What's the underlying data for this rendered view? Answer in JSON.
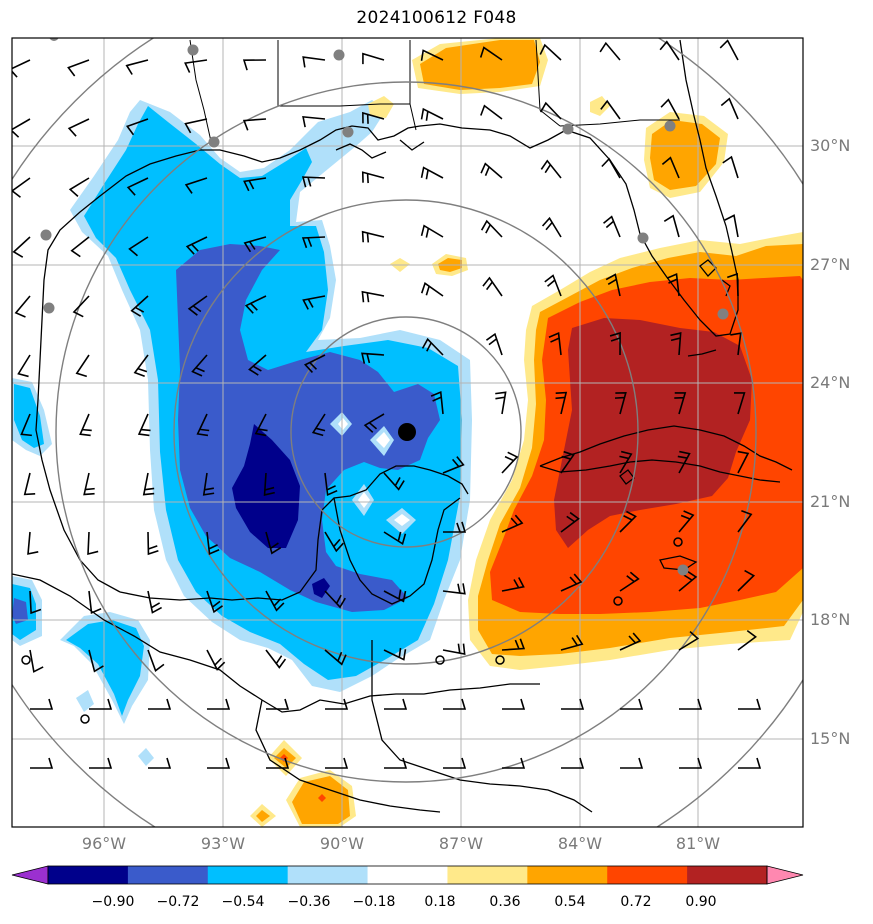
{
  "title": "2024100612 F048",
  "lat_labels": [
    "30°N",
    "27°N",
    "24°N",
    "21°N",
    "18°N",
    "15°N"
  ],
  "lon_labels": [
    "96°W",
    "93°W",
    "90°W",
    "87°W",
    "84°W",
    "81°W"
  ],
  "colorbar": {
    "ticks": [
      "−0.90",
      "−0.72",
      "−0.54",
      "−0.36",
      "−0.18",
      "0.18",
      "0.36",
      "0.54",
      "0.72",
      "0.90"
    ],
    "colors": [
      "#9b30d0",
      "#00008b",
      "#3a5bcb",
      "#00bfff",
      "#b0e0fa",
      "#ffffff",
      "#ffe98a",
      "#ffa500",
      "#ff4500",
      "#b22222",
      "#ff88b0"
    ]
  },
  "storm_center": "filled black dot near 23°N 88.5°W",
  "colors": {
    "coast": "#000000",
    "grid": "#b4b4b4",
    "range_rings": "#7f7f7f",
    "station_marker": "#808080",
    "wind_barbs": "#000000"
  }
}
